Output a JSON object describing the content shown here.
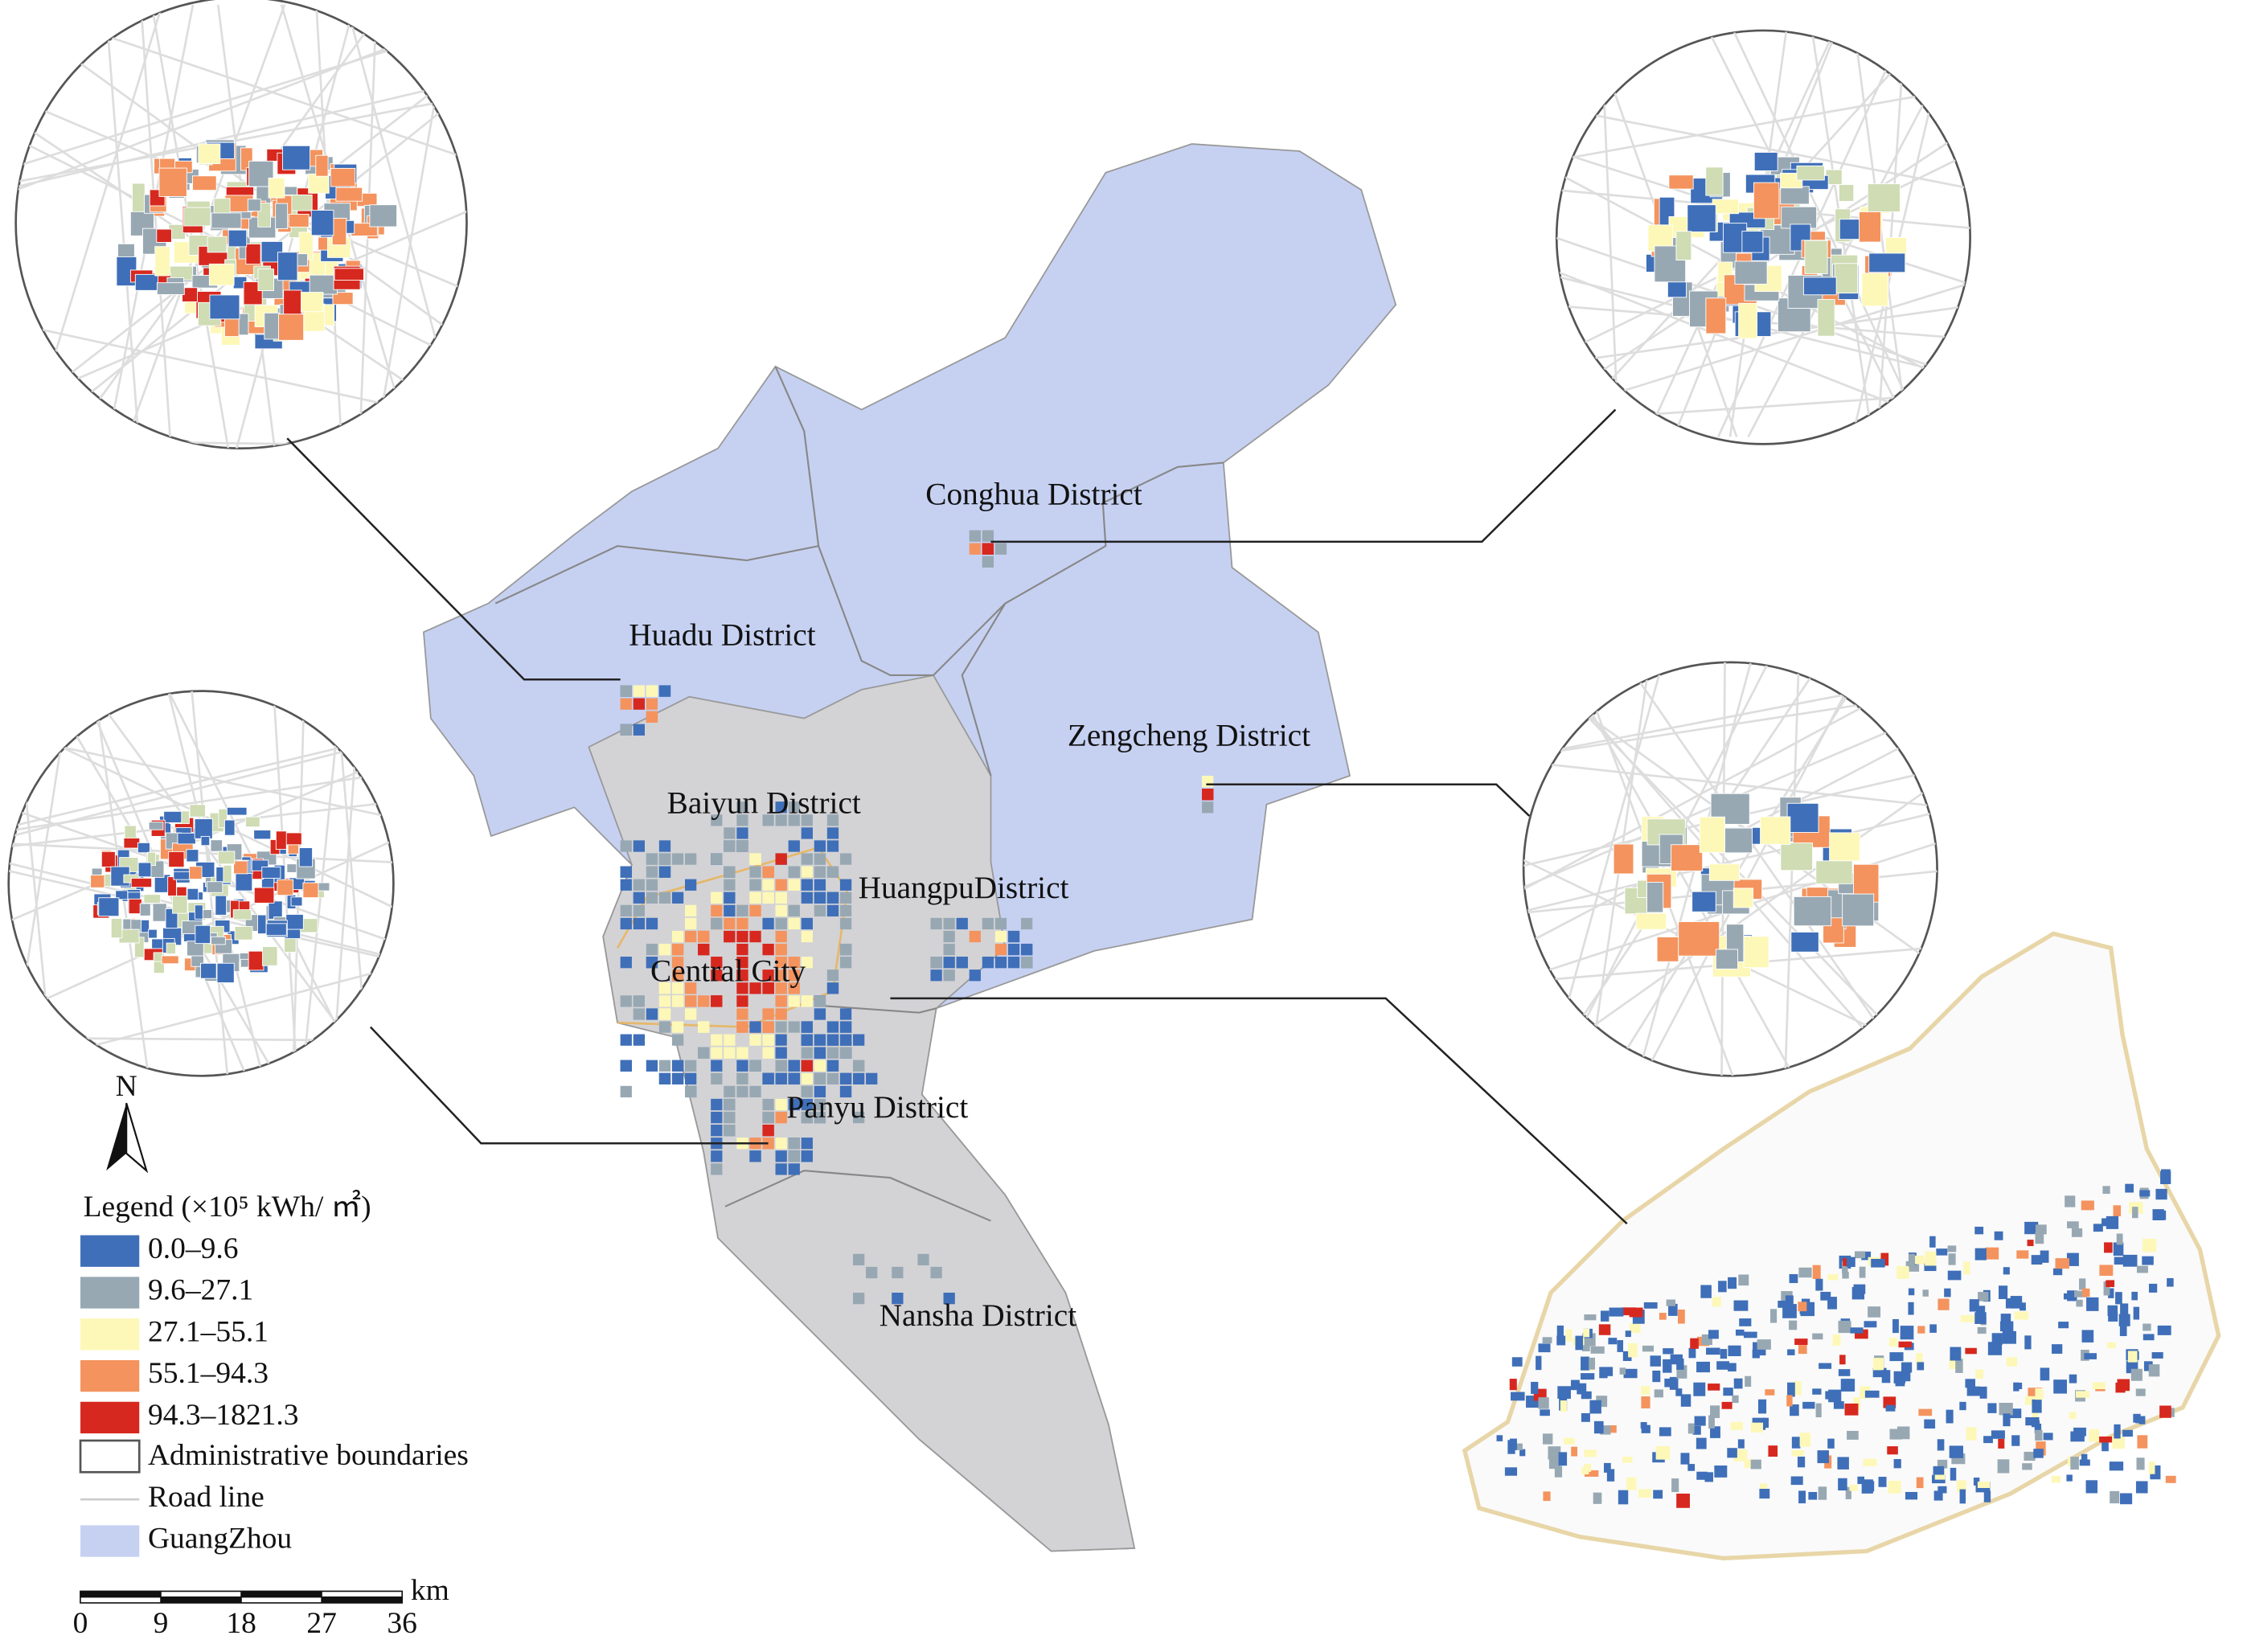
{
  "districts": [
    "Conghua District",
    "Huadu District",
    "Zengcheng District",
    "Baiyun District",
    "HuangpuDistrict",
    "Central City",
    "Panyu District",
    "Nansha District"
  ],
  "legend": {
    "title": "Legend (×10⁵ kWh/ ㎡)",
    "items": [
      {
        "label": "0.0–9.6",
        "color": "#3f6fb8"
      },
      {
        "label": "9.6–27.1",
        "color": "#98a8b3"
      },
      {
        "label": "27.1–55.1",
        "color": "#fdf8b8"
      },
      {
        "label": "55.1–94.3",
        "color": "#f4935e"
      },
      {
        "label": "94.3–1821.3",
        "color": "#d7281f"
      }
    ],
    "boundary": "Administrative boundaries",
    "road": "Road line",
    "area": "GuangZhou"
  },
  "north": "N",
  "scale_bar": {
    "ticks": [
      0,
      9,
      18,
      27,
      36
    ],
    "unit": "km"
  }
}
